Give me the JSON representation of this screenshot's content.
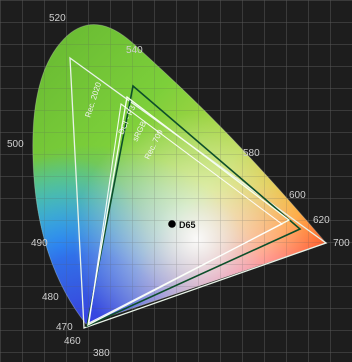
{
  "diagram": {
    "white_point_label": "D65",
    "gamuts": [
      {
        "label": "Rec. 2020",
        "color": "#e8f3e8"
      },
      {
        "label": "DCI - P3",
        "color": "#0d4f2a"
      },
      {
        "label": "sRGB",
        "color": "#f6fff0"
      },
      {
        "label": "Rec. 709",
        "color": "#ffffff"
      }
    ],
    "wavelength_labels": [
      "520",
      "540",
      "500",
      "580",
      "600",
      "620",
      "490",
      "700",
      "480",
      "470",
      "460",
      "380"
    ]
  }
}
